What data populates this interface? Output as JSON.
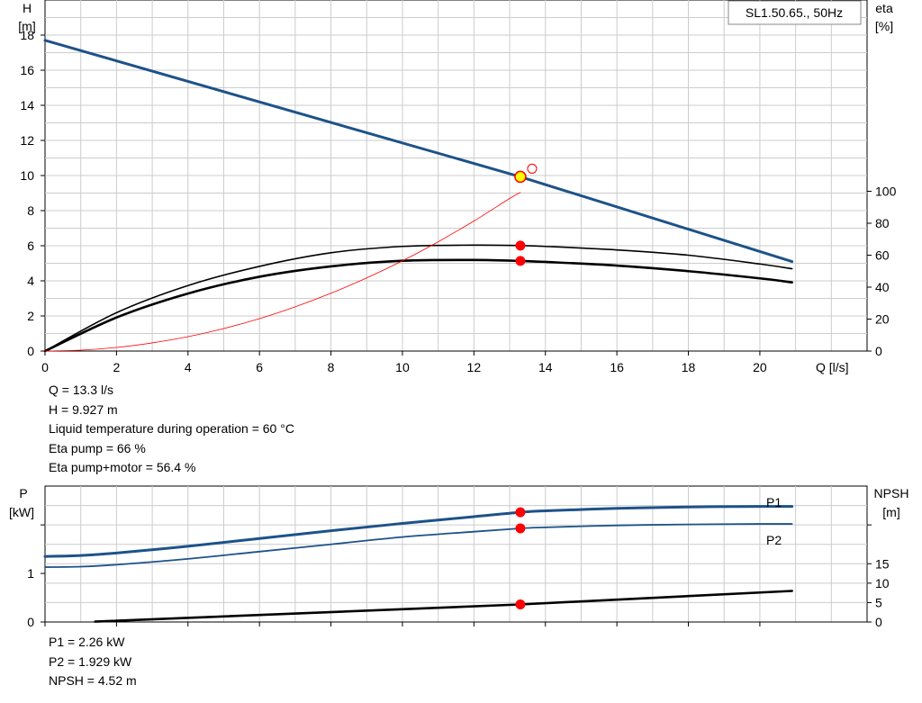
{
  "colors": {
    "blue": "#1d5289",
    "black": "#000000",
    "red": "#ff0000",
    "yellow": "#ffff00",
    "grid": "#cccccc"
  },
  "chart_data": [
    {
      "type": "line",
      "title": "SL1.50.65., 50Hz",
      "xlabel": "Q [l/s]",
      "ylabel_left": [
        "H",
        "[m]"
      ],
      "ylabel_right": [
        "eta",
        "[%]"
      ],
      "xlim": [
        0,
        23
      ],
      "ylim_left": [
        0,
        20
      ],
      "ylim_right": [
        0,
        100
      ],
      "grid": true,
      "x_ticks": [
        0,
        2,
        4,
        6,
        8,
        10,
        12,
        14,
        16,
        18,
        20
      ],
      "y_ticks_left": [
        0,
        2,
        4,
        6,
        8,
        10,
        12,
        14,
        16,
        18
      ],
      "y_ticks_right": [
        0,
        20,
        40,
        60,
        80,
        100
      ],
      "series": [
        {
          "name": "",
          "axis": "left",
          "color": "#1d5289",
          "width": 3,
          "x": [
            0,
            13.3,
            20.9
          ],
          "y": [
            17.7,
            9.927,
            5.1
          ]
        },
        {
          "name": "",
          "axis": "right",
          "color": "#000000",
          "width": 1.6,
          "x": [
            0,
            2,
            4,
            6,
            8,
            10,
            12,
            13.3,
            14,
            16,
            18,
            20,
            20.9
          ],
          "y": [
            0,
            24,
            41,
            53,
            61.5,
            65.5,
            66.3,
            66,
            65.5,
            63.3,
            60,
            54.5,
            51.5
          ]
        },
        {
          "name": "",
          "axis": "right",
          "color": "#000000",
          "width": 2.6,
          "x": [
            0,
            2,
            4,
            6,
            8,
            10,
            12,
            13.3,
            14,
            16,
            18,
            20,
            20.9
          ],
          "y": [
            0,
            21,
            36,
            46.5,
            53,
            56.5,
            57,
            56.4,
            55.8,
            53.5,
            50,
            45.5,
            43
          ]
        },
        {
          "name": "",
          "axis": "right",
          "color": "#ff0000",
          "width": 0.8,
          "x": [
            0,
            1,
            2,
            3,
            4,
            5,
            6,
            7,
            8,
            9,
            10,
            11,
            12,
            13,
            13.3
          ],
          "y": [
            0,
            0.56,
            2.26,
            5.1,
            9.0,
            14.1,
            20.3,
            27.7,
            36.2,
            45.8,
            56.5,
            68.4,
            81.4,
            95.5,
            99.3
          ]
        }
      ],
      "operating_point": {
        "x": 13.3,
        "H": 9.927,
        "eta_pump": 66,
        "eta_total": 56.4
      }
    },
    {
      "type": "line",
      "xlabel": "",
      "ylabel_left": [
        "P",
        "[kW]"
      ],
      "ylabel_right": [
        "NPSH",
        "[m]"
      ],
      "xlim": [
        0,
        23
      ],
      "ylim_left": [
        0,
        2.8
      ],
      "ylim_right": [
        0,
        35
      ],
      "grid": true,
      "y_ticks_left": [
        0,
        1
      ],
      "y_ticks_right": [
        0,
        5,
        10,
        15
      ],
      "series": [
        {
          "name": "P1",
          "axis": "left",
          "color": "#1d5289",
          "width": 3,
          "x": [
            0,
            1,
            2,
            4,
            6,
            8,
            10,
            12,
            13.3,
            14,
            16,
            18,
            20,
            20.9
          ],
          "y": [
            1.35,
            1.37,
            1.42,
            1.56,
            1.72,
            1.88,
            2.03,
            2.17,
            2.26,
            2.29,
            2.34,
            2.37,
            2.38,
            2.38
          ]
        },
        {
          "name": "P2",
          "axis": "left",
          "color": "#1d5289",
          "width": 1.8,
          "x": [
            0,
            1,
            2,
            4,
            6,
            8,
            10,
            12,
            13.3,
            14,
            16,
            18,
            20,
            20.9
          ],
          "y": [
            1.13,
            1.14,
            1.18,
            1.3,
            1.45,
            1.6,
            1.75,
            1.86,
            1.929,
            1.95,
            1.99,
            2.01,
            2.02,
            2.02
          ]
        },
        {
          "name": "",
          "axis": "right",
          "color": "#000000",
          "width": 2.6,
          "x": [
            1.4,
            13.3,
            20.9
          ],
          "y": [
            0.1,
            4.52,
            8
          ]
        }
      ],
      "legend_labels": [
        "P1",
        "P2"
      ],
      "operating_point": {
        "x": 13.3,
        "P1": 2.26,
        "P2": 1.929,
        "NPSH": 4.52
      }
    }
  ],
  "readout_top": [
    "Q = 13.3 l/s",
    "H = 9.927 m",
    "Liquid temperature during operation = 60 °C",
    "Eta pump = 66 %",
    "Eta pump+motor = 56.4 %"
  ],
  "readout_bottom": [
    "P1 = 2.26 kW",
    "P2 = 1.929 kW",
    "NPSH = 4.52 m"
  ]
}
